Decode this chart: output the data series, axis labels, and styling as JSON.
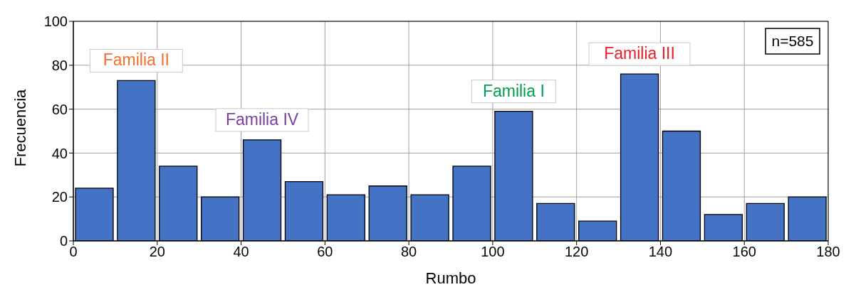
{
  "chart_data": {
    "type": "histogram",
    "xlabel": "Rumbo",
    "ylabel": "Frecuencia",
    "bins": [
      0,
      10,
      20,
      30,
      40,
      50,
      60,
      70,
      80,
      90,
      100,
      110,
      120,
      130,
      140,
      150,
      160,
      170,
      180
    ],
    "values": [
      24,
      73,
      34,
      20,
      46,
      27,
      21,
      25,
      21,
      34,
      59,
      17,
      9,
      76,
      50,
      12,
      17,
      20
    ],
    "color": "#4472c4",
    "xlim": [
      0,
      180
    ],
    "xticks": [
      0,
      20,
      40,
      60,
      80,
      100,
      120,
      140,
      160,
      180
    ],
    "ylim": [
      0,
      100
    ],
    "yticks": [
      0,
      20,
      40,
      60,
      80,
      100
    ],
    "grid": true,
    "annotations": [
      {
        "text": "Familia II",
        "x": 15,
        "y": 73
      },
      {
        "text": "Familia IV",
        "x": 45,
        "y": 46
      },
      {
        "text": "Familia I",
        "x": 105,
        "y": 59
      },
      {
        "text": "Familia III",
        "x": 135,
        "y": 76
      },
      "n=585"
    ]
  }
}
